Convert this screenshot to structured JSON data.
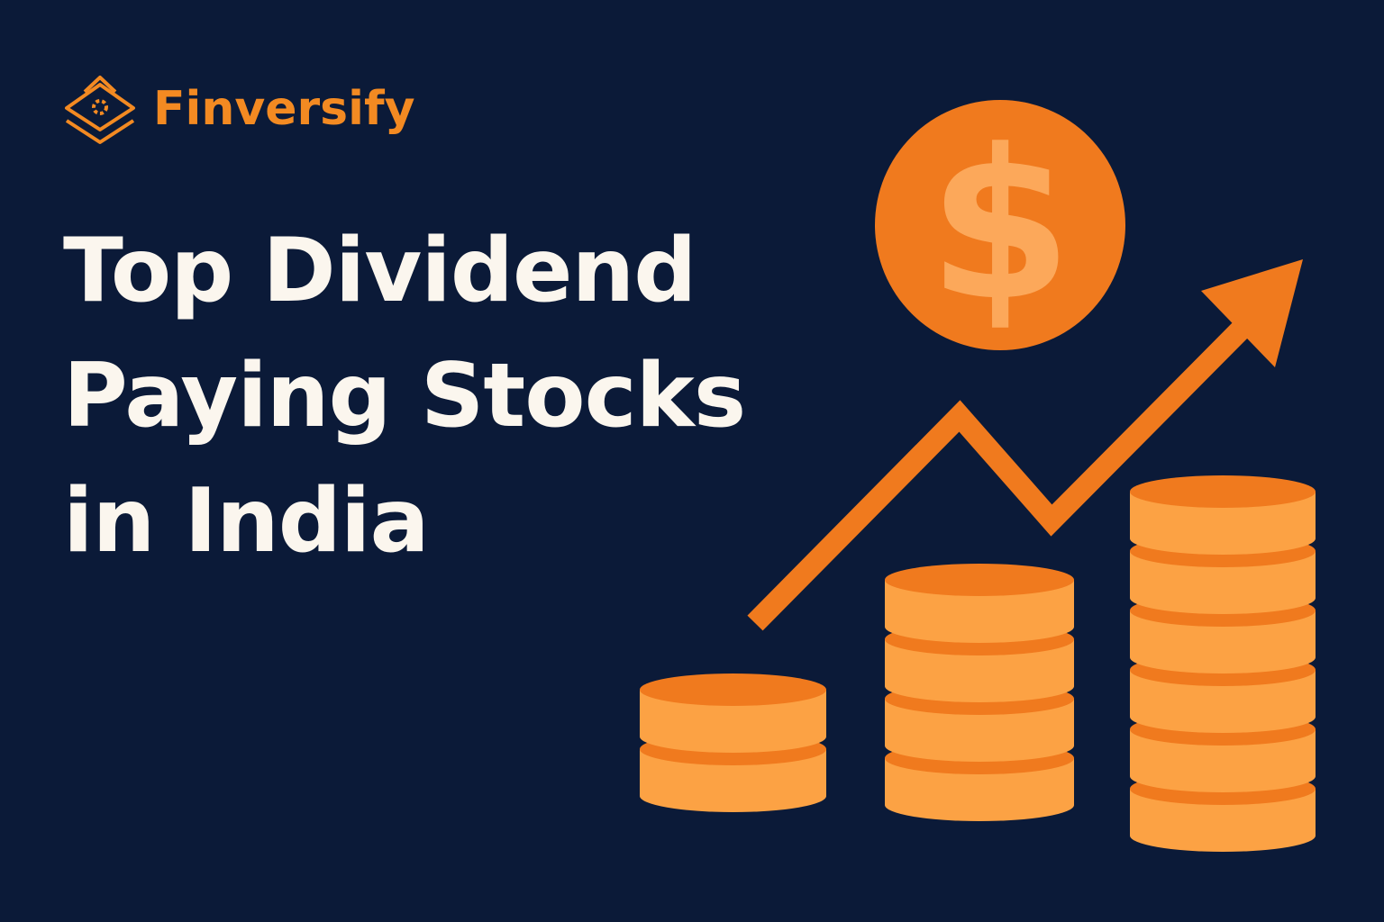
{
  "brand": {
    "name": "Finversify",
    "icon": "stacked-layers-logo"
  },
  "title": {
    "lines": [
      "Top Dividend",
      "Paying Stocks",
      "in India"
    ]
  },
  "illustration": {
    "coin_symbol": "$",
    "icons": [
      "dollar-coin-icon",
      "trend-arrow-icon",
      "coin-stacks-icon"
    ],
    "coin_stack_counts": [
      2,
      4,
      6
    ]
  },
  "colors": {
    "background": "#0b1a38",
    "accent": "#f07a1e",
    "accent_light": "#fca244",
    "text": "#fbf6ee"
  }
}
